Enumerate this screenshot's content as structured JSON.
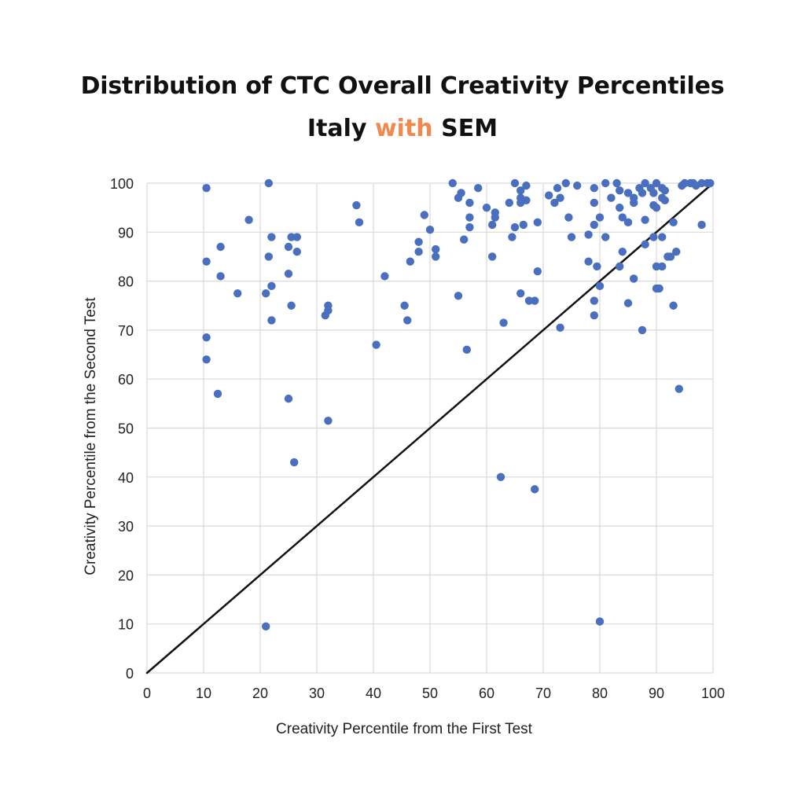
{
  "title": {
    "line1": "Distribution of CTC Overall Creativity Percentiles",
    "line2_pre": "Italy ",
    "line2_accent": "with",
    "line2_post": " SEM"
  },
  "colors": {
    "accent": "#f0894f",
    "points": "#4a6fbf",
    "line": "#111111",
    "grid": "#d9d9d9"
  },
  "chart_data": {
    "type": "scatter",
    "xlabel": "Creativity Percentile from the First Test",
    "ylabel": "Creativity Percentile from the Second Test",
    "xlim": [
      0,
      100
    ],
    "ylim": [
      0,
      100
    ],
    "xticks": [
      0,
      10,
      20,
      30,
      40,
      50,
      60,
      70,
      80,
      90,
      100
    ],
    "yticks": [
      0,
      10,
      20,
      30,
      40,
      50,
      60,
      70,
      80,
      90,
      100
    ],
    "grid": true,
    "reference_line": [
      [
        0,
        0
      ],
      [
        100,
        100
      ]
    ],
    "points": [
      [
        10.5,
        99
      ],
      [
        10.5,
        84
      ],
      [
        10.5,
        68.5
      ],
      [
        10.5,
        64
      ],
      [
        12.5,
        57
      ],
      [
        13,
        87
      ],
      [
        13,
        81
      ],
      [
        16,
        77.5
      ],
      [
        18,
        92.5
      ],
      [
        21,
        77.5
      ],
      [
        21,
        9.5
      ],
      [
        21.5,
        100
      ],
      [
        21.5,
        85
      ],
      [
        22,
        89
      ],
      [
        22,
        79
      ],
      [
        22,
        72
      ],
      [
        25,
        87
      ],
      [
        25,
        81.5
      ],
      [
        25,
        56
      ],
      [
        25.5,
        75
      ],
      [
        25.5,
        89
      ],
      [
        26,
        43
      ],
      [
        26.5,
        89
      ],
      [
        26.5,
        86
      ],
      [
        32,
        75
      ],
      [
        32,
        74
      ],
      [
        31.5,
        73
      ],
      [
        32,
        51.5
      ],
      [
        37,
        95.5
      ],
      [
        37.5,
        92
      ],
      [
        40.5,
        67
      ],
      [
        42,
        81
      ],
      [
        45.5,
        75
      ],
      [
        46,
        72
      ],
      [
        46.5,
        84
      ],
      [
        48,
        88
      ],
      [
        48,
        86
      ],
      [
        49,
        93.5
      ],
      [
        50,
        90.5
      ],
      [
        51,
        86.5
      ],
      [
        51,
        85
      ],
      [
        54,
        100
      ],
      [
        55,
        97
      ],
      [
        55.5,
        98
      ],
      [
        56,
        88.5
      ],
      [
        55,
        77
      ],
      [
        57,
        96
      ],
      [
        57,
        93
      ],
      [
        57,
        91
      ],
      [
        56.5,
        66
      ],
      [
        58.5,
        99
      ],
      [
        60,
        95
      ],
      [
        61,
        91.5
      ],
      [
        61.5,
        94
      ],
      [
        61.5,
        93
      ],
      [
        61,
        85
      ],
      [
        62.5,
        40
      ],
      [
        63,
        71.5
      ],
      [
        64,
        96
      ],
      [
        64.5,
        89
      ],
      [
        65,
        100
      ],
      [
        65,
        91
      ],
      [
        66,
        98.5
      ],
      [
        66,
        97
      ],
      [
        66,
        96
      ],
      [
        67,
        99.5
      ],
      [
        66.5,
        91.5
      ],
      [
        67,
        96.5
      ],
      [
        66,
        77.5
      ],
      [
        67.5,
        76
      ],
      [
        68.5,
        76
      ],
      [
        68.5,
        37.5
      ],
      [
        69,
        92
      ],
      [
        69,
        82
      ],
      [
        71,
        97.5
      ],
      [
        72,
        96
      ],
      [
        72.5,
        99
      ],
      [
        73,
        97
      ],
      [
        73,
        70.5
      ],
      [
        74,
        100
      ],
      [
        74.5,
        93
      ],
      [
        75,
        89
      ],
      [
        76,
        99.5
      ],
      [
        78,
        84
      ],
      [
        78,
        89.5
      ],
      [
        79,
        99
      ],
      [
        79,
        96
      ],
      [
        79,
        91.5
      ],
      [
        79,
        76
      ],
      [
        79,
        73
      ],
      [
        79.5,
        83
      ],
      [
        80,
        79
      ],
      [
        80,
        93
      ],
      [
        80,
        10.5
      ],
      [
        81,
        100
      ],
      [
        81,
        89
      ],
      [
        82,
        97
      ],
      [
        83,
        100
      ],
      [
        83.5,
        98.5
      ],
      [
        83.5,
        95
      ],
      [
        84,
        93
      ],
      [
        84,
        86
      ],
      [
        83.5,
        83
      ],
      [
        85,
        92
      ],
      [
        85,
        98
      ],
      [
        85,
        75.5
      ],
      [
        86,
        97
      ],
      [
        86,
        96
      ],
      [
        86,
        80.5
      ],
      [
        87,
        99
      ],
      [
        87.5,
        98
      ],
      [
        87.5,
        70
      ],
      [
        88,
        100
      ],
      [
        88,
        92.5
      ],
      [
        88,
        87.5
      ],
      [
        89,
        99
      ],
      [
        89.5,
        98
      ],
      [
        89.5,
        95.5
      ],
      [
        89.5,
        89
      ],
      [
        90,
        100
      ],
      [
        90,
        95
      ],
      [
        90,
        83
      ],
      [
        90,
        78.5
      ],
      [
        90.5,
        78.5
      ],
      [
        91,
        99
      ],
      [
        91,
        97
      ],
      [
        91.5,
        98.5
      ],
      [
        91.5,
        96.5
      ],
      [
        91,
        89
      ],
      [
        91,
        83
      ],
      [
        92,
        85
      ],
      [
        92.5,
        85
      ],
      [
        93,
        92
      ],
      [
        93,
        75
      ],
      [
        93.5,
        86
      ],
      [
        94,
        58
      ],
      [
        94.5,
        99.5
      ],
      [
        95,
        100
      ],
      [
        96,
        100
      ],
      [
        96.5,
        100
      ],
      [
        97,
        99.5
      ],
      [
        98,
        100
      ],
      [
        98,
        91.5
      ],
      [
        99,
        100
      ],
      [
        99.5,
        100
      ]
    ]
  }
}
